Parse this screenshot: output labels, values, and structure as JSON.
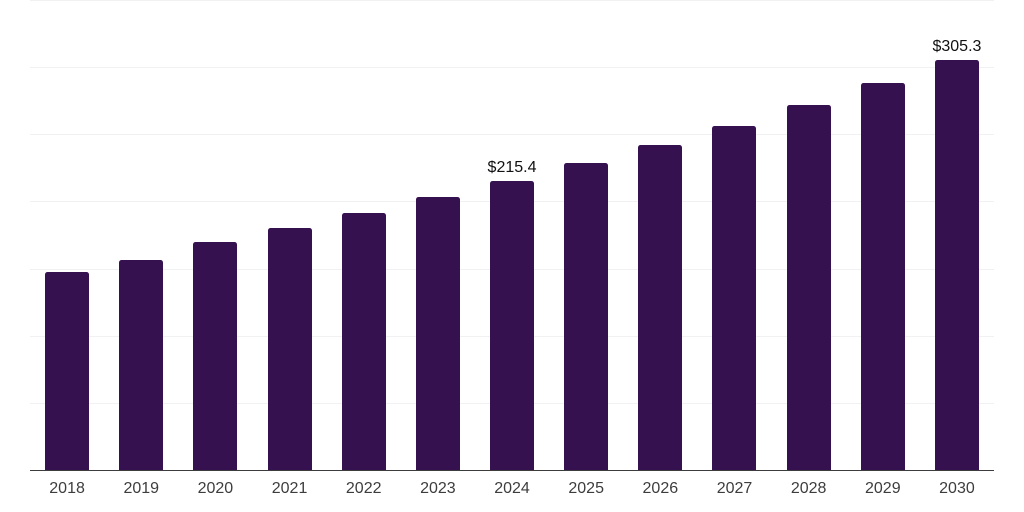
{
  "chart_data": {
    "type": "bar",
    "categories": [
      "2018",
      "2019",
      "2020",
      "2021",
      "2022",
      "2023",
      "2024",
      "2025",
      "2026",
      "2027",
      "2028",
      "2029",
      "2030"
    ],
    "values": [
      147.2,
      156.4,
      170.0,
      180.1,
      191.7,
      203.5,
      215.4,
      228.3,
      242.0,
      256.4,
      271.8,
      288.0,
      305.3
    ],
    "value_labels": {
      "2024": "$215.4",
      "2030": "$305.3"
    },
    "title": "",
    "xlabel": "",
    "ylabel": "",
    "ylim": [
      0,
      350
    ],
    "gridline_step": 50,
    "grid": "horizontal-only",
    "y_axis_ticks_visible": false,
    "legend": "none",
    "colors": {
      "bar": "#36114F",
      "gridline": "#f1f1f1",
      "axis_line": "#3d3d3d",
      "tick_label": "#3d3d3d",
      "value_label": "#111111",
      "background": "#ffffff"
    }
  }
}
